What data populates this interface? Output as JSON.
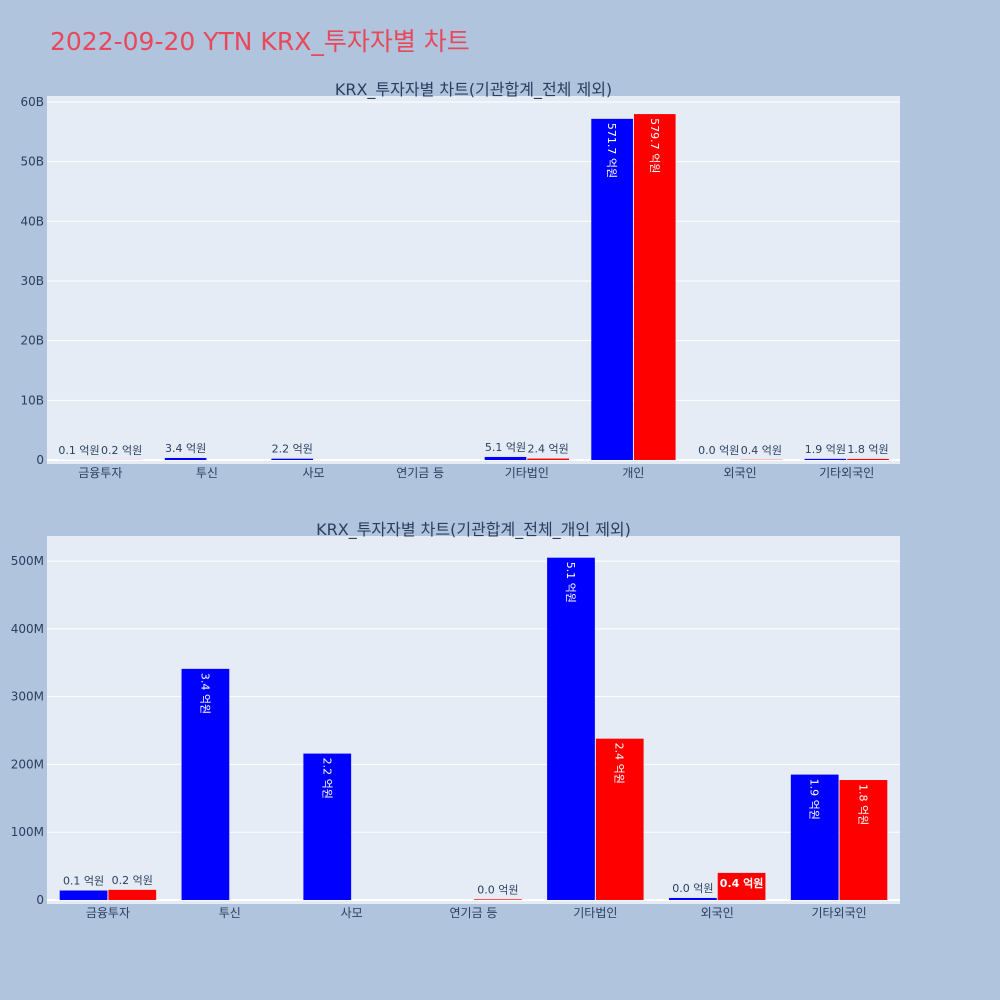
{
  "page": {
    "title": "2022-09-20 YTN KRX_투자자별 차트"
  },
  "chart_data": [
    {
      "type": "bar",
      "title": "KRX_투자자별 차트(기관합계_전체 제외)",
      "categories": [
        "금융투자",
        "투신",
        "사모",
        "연기금 등",
        "기타법인",
        "개인",
        "외국인",
        "기타외국인"
      ],
      "ylim": [
        0,
        61000000000
      ],
      "yticks": [
        0,
        10000000000,
        20000000000,
        30000000000,
        40000000000,
        50000000000,
        60000000000
      ],
      "ytick_labels": [
        "0",
        "10B",
        "20B",
        "30B",
        "40B",
        "50B",
        "60B"
      ],
      "grid": true,
      "series": [
        {
          "color": "#0000ff",
          "values": [
            10000000,
            340000000,
            220000000,
            0,
            510000000,
            57170000000,
            0,
            190000000
          ],
          "labels": [
            "0.1 억원",
            "3.4 억원",
            "2.2 억원",
            "",
            "5.1 억원",
            "571.7 억원",
            "0.0 억원",
            "1.9 억원"
          ]
        },
        {
          "color": "#ff0000",
          "values": [
            20000000,
            0,
            0,
            0,
            240000000,
            57970000000,
            40000000,
            180000000
          ],
          "labels": [
            "0.2 억원",
            "",
            "",
            "",
            "2.4 억원",
            "579.7 억원",
            "0.4 억원",
            "1.8 억원"
          ]
        }
      ]
    },
    {
      "type": "bar",
      "title": "KRX_투자자별 차트(기관합계_전체_개인 제외)",
      "categories": [
        "금융투자",
        "투신",
        "사모",
        "연기금 등",
        "기타법인",
        "외국인",
        "기타외국인"
      ],
      "ylim": [
        0,
        537000000
      ],
      "yticks": [
        0,
        100000000,
        200000000,
        300000000,
        400000000,
        500000000
      ],
      "ytick_labels": [
        "0",
        "100M",
        "200M",
        "300M",
        "400M",
        "500M"
      ],
      "grid": true,
      "series": [
        {
          "color": "#0000ff",
          "values": [
            14000000,
            341000000,
            216000000,
            0,
            505000000,
            3000000,
            185000000
          ],
          "labels": [
            "0.1 억원",
            "3.4 억원",
            "2.2 억원",
            "",
            "5.1 억원",
            "0.0 억원",
            "1.9 억원"
          ]
        },
        {
          "color": "#ff0000",
          "values": [
            15000000,
            0,
            0,
            1000000,
            238000000,
            40000000,
            177000000
          ],
          "labels": [
            "0.2 억원",
            "",
            "",
            "0.0 억원",
            "2.4 억원",
            "0.4 억원",
            "1.8 억원"
          ]
        }
      ]
    }
  ]
}
